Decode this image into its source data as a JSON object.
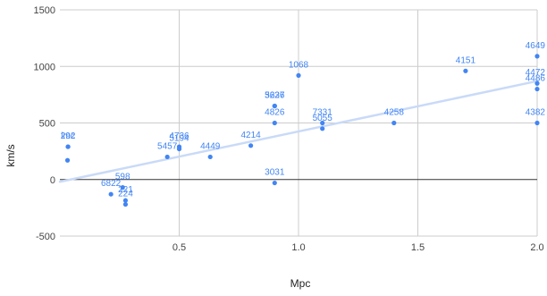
{
  "chart_data": {
    "type": "scatter",
    "title": "",
    "xlabel": "Mpc",
    "ylabel": "km/s",
    "xlim": [
      0,
      2.0
    ],
    "ylim": [
      -500,
      1500
    ],
    "x_ticks": [
      "0.5",
      "1.0",
      "1.5",
      "2.0"
    ],
    "y_ticks": [
      "-500",
      "0",
      "500",
      "1000",
      "1500"
    ],
    "grid": true,
    "trendline": {
      "type": "linear",
      "from": [
        0.0,
        -20
      ],
      "to": [
        2.0,
        870
      ]
    },
    "colors": {
      "points": "#4285f4",
      "trendline": "#c9daf8",
      "grid": "#cccccc",
      "zero_line": "#333333"
    },
    "points": [
      {
        "x": 0.032,
        "y": 170,
        "label": ""
      },
      {
        "x": 0.034,
        "y": 290,
        "label": "292"
      },
      {
        "x": 0.034,
        "y": 290,
        "label": "lmc"
      },
      {
        "x": 0.214,
        "y": -130,
        "label": "6822"
      },
      {
        "x": 0.263,
        "y": -70,
        "label": "598"
      },
      {
        "x": 0.275,
        "y": -185,
        "label": "221"
      },
      {
        "x": 0.275,
        "y": -220,
        "label": "224"
      },
      {
        "x": 0.45,
        "y": 200,
        "label": "5457"
      },
      {
        "x": 0.5,
        "y": 290,
        "label": "4736"
      },
      {
        "x": 0.5,
        "y": 270,
        "label": "5194"
      },
      {
        "x": 0.63,
        "y": 200,
        "label": "4449"
      },
      {
        "x": 0.8,
        "y": 300,
        "label": "4214"
      },
      {
        "x": 0.9,
        "y": -30,
        "label": "3031"
      },
      {
        "x": 0.9,
        "y": 500,
        "label": "4826"
      },
      {
        "x": 0.9,
        "y": 650,
        "label": "3627"
      },
      {
        "x": 0.9,
        "y": 650,
        "label": "5236"
      },
      {
        "x": 1.0,
        "y": 920,
        "label": "1068"
      },
      {
        "x": 1.1,
        "y": 450,
        "label": "5055"
      },
      {
        "x": 1.1,
        "y": 500,
        "label": "7331"
      },
      {
        "x": 1.4,
        "y": 500,
        "label": "4258"
      },
      {
        "x": 1.7,
        "y": 960,
        "label": "4151"
      },
      {
        "x": 2.0,
        "y": 500,
        "label": "4382"
      },
      {
        "x": 2.0,
        "y": 800,
        "label": "4486"
      },
      {
        "x": 2.0,
        "y": 850,
        "label": "4472"
      },
      {
        "x": 2.0,
        "y": 1090,
        "label": "4649"
      }
    ]
  }
}
